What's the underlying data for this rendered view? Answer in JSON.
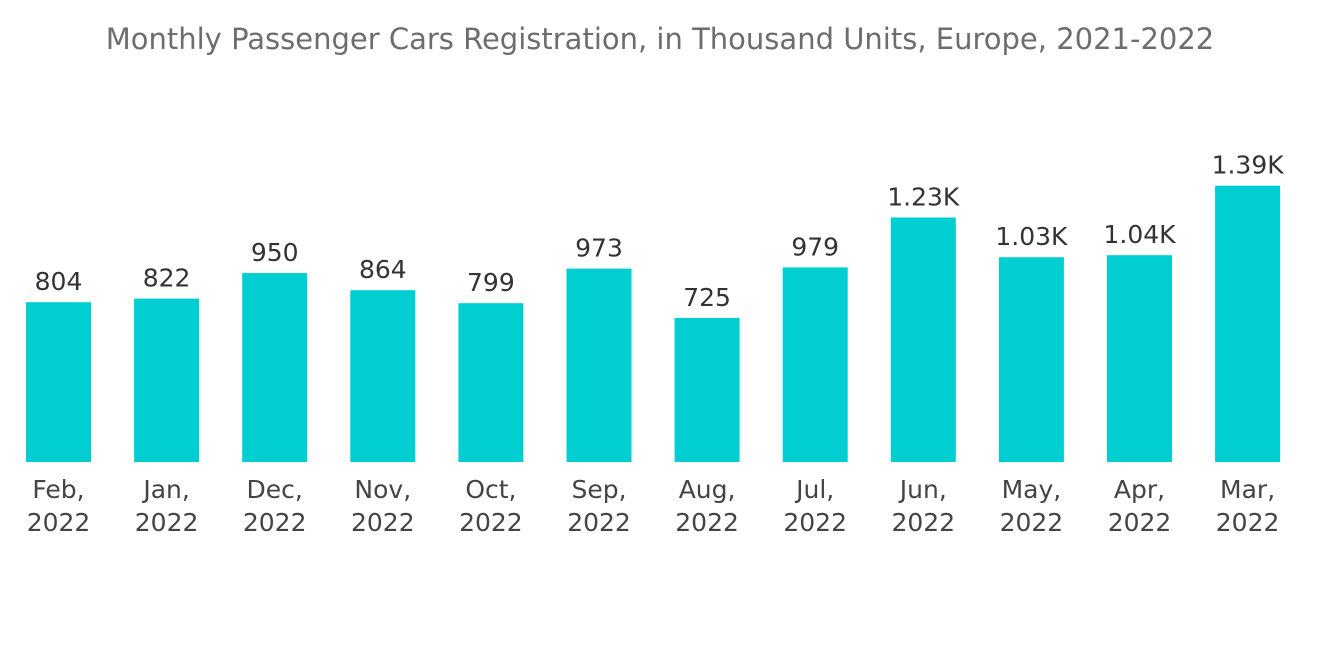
{
  "chart_data": {
    "type": "bar",
    "title": "Monthly Passenger Cars Registration, in Thousand Units, Europe, 2021-2022",
    "xlabel": "",
    "ylabel": "",
    "categories": [
      [
        "Feb,",
        "2022"
      ],
      [
        "Jan,",
        "2022"
      ],
      [
        "Dec,",
        "2022"
      ],
      [
        "Nov,",
        "2022"
      ],
      [
        "Oct,",
        "2022"
      ],
      [
        "Sep,",
        "2022"
      ],
      [
        "Aug,",
        "2022"
      ],
      [
        "Jul,",
        "2022"
      ],
      [
        "Jun,",
        "2022"
      ],
      [
        "May,",
        "2022"
      ],
      [
        "Apr,",
        "2022"
      ],
      [
        "Mar,",
        "2022"
      ]
    ],
    "values": [
      804,
      822,
      950,
      864,
      799,
      973,
      725,
      979,
      1230,
      1030,
      1040,
      1390
    ],
    "data_labels": [
      "804",
      "822",
      "950",
      "864",
      "799",
      "973",
      "725",
      "979",
      "1.23K",
      "1.03K",
      "1.04K",
      "1.39K"
    ],
    "grid": false,
    "legend": "none",
    "colors": {
      "bar": "#00ced1"
    }
  }
}
